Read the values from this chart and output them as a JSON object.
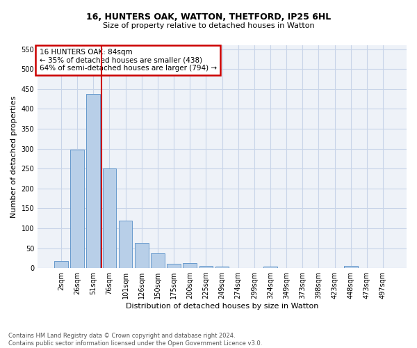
{
  "title1": "16, HUNTERS OAK, WATTON, THETFORD, IP25 6HL",
  "title2": "Size of property relative to detached houses in Watton",
  "xlabel": "Distribution of detached houses by size in Watton",
  "ylabel": "Number of detached properties",
  "footer_line1": "Contains HM Land Registry data © Crown copyright and database right 2024.",
  "footer_line2": "Contains public sector information licensed under the Open Government Licence v3.0.",
  "bar_labels": [
    "2sqm",
    "26sqm",
    "51sqm",
    "76sqm",
    "101sqm",
    "126sqm",
    "150sqm",
    "175sqm",
    "200sqm",
    "225sqm",
    "249sqm",
    "274sqm",
    "299sqm",
    "324sqm",
    "349sqm",
    "373sqm",
    "398sqm",
    "423sqm",
    "448sqm",
    "473sqm",
    "497sqm"
  ],
  "bar_values": [
    17,
    298,
    438,
    250,
    119,
    64,
    37,
    11,
    13,
    5,
    4,
    0,
    0,
    3,
    0,
    0,
    0,
    0,
    6,
    0,
    0
  ],
  "bar_color": "#b8cfe8",
  "bar_edge_color": "#6699cc",
  "grid_color": "#c8d4e8",
  "annotation_text_line1": "16 HUNTERS OAK: 84sqm",
  "annotation_text_line2": "← 35% of detached houses are smaller (438)",
  "annotation_text_line3": "64% of semi-detached houses are larger (794) →",
  "annotation_box_color": "#ffffff",
  "annotation_box_edge_color": "#cc0000",
  "red_line_color": "#cc0000",
  "red_line_x": 2.5,
  "ylim": [
    0,
    560
  ],
  "yticks": [
    0,
    50,
    100,
    150,
    200,
    250,
    300,
    350,
    400,
    450,
    500,
    550
  ],
  "background_color": "#ffffff",
  "plot_bg_color": "#eef2f8",
  "title1_fontsize": 9,
  "title2_fontsize": 8,
  "xlabel_fontsize": 8,
  "ylabel_fontsize": 8,
  "tick_fontsize": 7,
  "footer_fontsize": 6
}
